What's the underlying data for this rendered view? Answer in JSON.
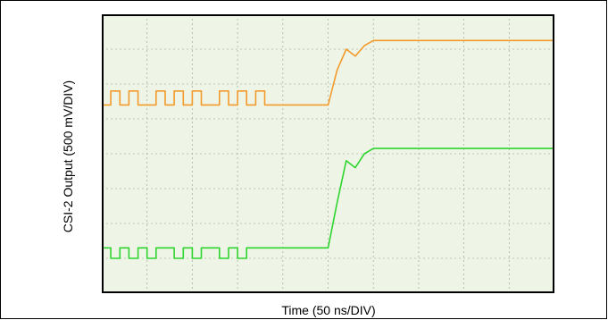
{
  "chart_data": {
    "type": "line",
    "title": "",
    "xlabel": "Time (50 ns/DIV)",
    "ylabel": "CSI-2 Output (500 mV/DIV)",
    "grid": true,
    "grid_divisions": {
      "x": 10,
      "y": 8
    },
    "background_color": "#eef5e6",
    "grid_color": "#a7b6a3",
    "xlim": [
      0,
      10
    ],
    "ylim": [
      0,
      8
    ],
    "series": [
      {
        "color": "#f39a2b",
        "x": [
          0,
          0.2,
          0.4,
          0.6,
          0.8,
          1.0,
          1.2,
          1.4,
          1.6,
          1.8,
          2.0,
          2.2,
          2.4,
          2.6,
          2.8,
          3.0,
          3.2,
          3.4,
          3.6,
          3.8,
          4.0,
          4.2,
          4.4,
          4.6,
          4.8,
          5.0,
          5.2,
          5.4,
          5.6,
          5.8,
          6.0,
          6.5,
          7.0,
          8.0,
          9.0,
          10.0
        ],
        "y": [
          5.4,
          5.8,
          5.4,
          5.8,
          5.4,
          5.4,
          5.8,
          5.4,
          5.8,
          5.4,
          5.8,
          5.4,
          5.4,
          5.8,
          5.4,
          5.8,
          5.4,
          5.8,
          5.4,
          5.4,
          5.4,
          5.4,
          5.4,
          5.4,
          5.4,
          5.4,
          6.4,
          7.0,
          6.8,
          7.1,
          7.25,
          7.25,
          7.25,
          7.25,
          7.25,
          7.25
        ]
      },
      {
        "color": "#2fd42f",
        "x": [
          0,
          0.2,
          0.4,
          0.6,
          0.8,
          1.0,
          1.2,
          1.4,
          1.6,
          1.8,
          2.0,
          2.2,
          2.4,
          2.6,
          2.8,
          3.0,
          3.2,
          3.4,
          3.6,
          3.8,
          4.0,
          4.2,
          4.4,
          4.6,
          4.8,
          5.0,
          5.2,
          5.4,
          5.6,
          5.8,
          6.0,
          6.5,
          7.0,
          8.0,
          9.0,
          10.0
        ],
        "y": [
          1.3,
          1.0,
          1.3,
          1.0,
          1.3,
          1.0,
          1.3,
          1.3,
          1.0,
          1.3,
          1.0,
          1.3,
          1.3,
          1.0,
          1.3,
          1.0,
          1.3,
          1.3,
          1.3,
          1.3,
          1.3,
          1.3,
          1.3,
          1.3,
          1.3,
          1.3,
          2.6,
          3.8,
          3.6,
          4.0,
          4.15,
          4.15,
          4.15,
          4.15,
          4.15,
          4.15
        ]
      }
    ]
  }
}
